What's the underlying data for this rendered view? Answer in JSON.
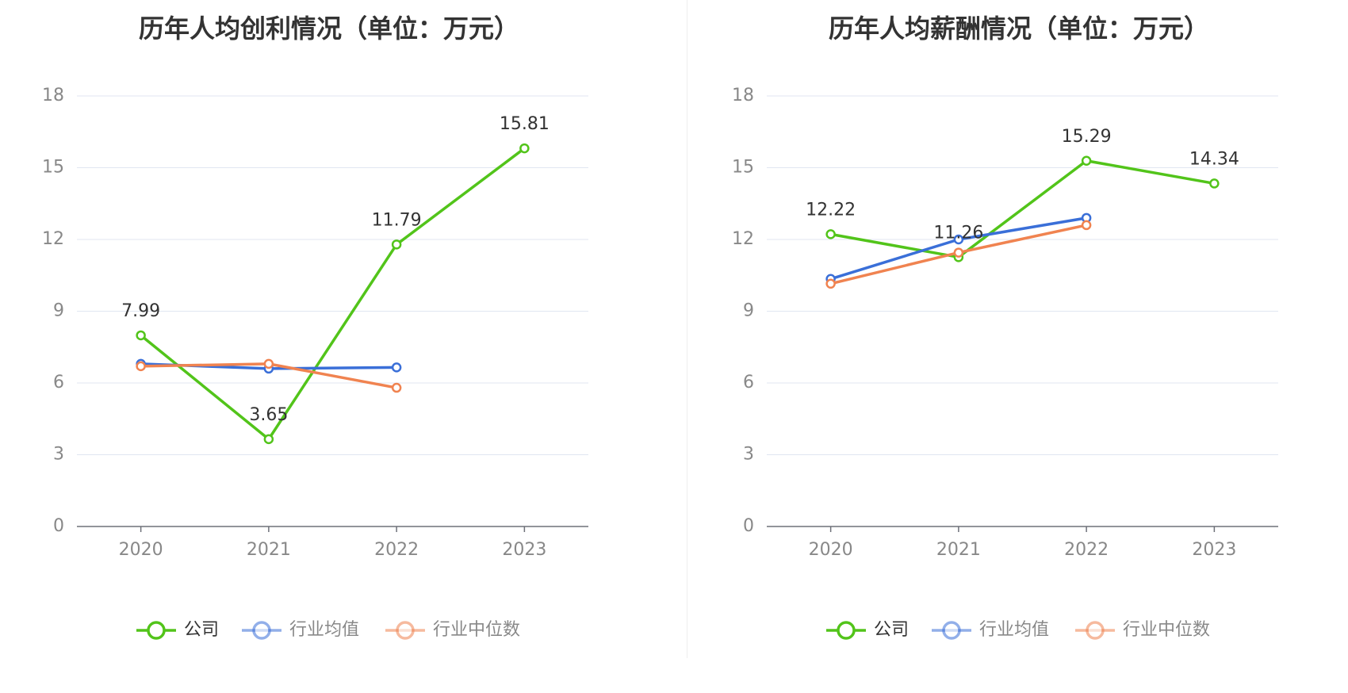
{
  "chart_data": [
    {
      "type": "line",
      "title": "历年人均创利情况（单位：万元）",
      "categories": [
        "2020",
        "2021",
        "2022",
        "2023"
      ],
      "ylim": [
        0,
        18
      ],
      "yticks": [
        0,
        3,
        6,
        9,
        12,
        15,
        18
      ],
      "grid": true,
      "legend_position": "bottom",
      "series": [
        {
          "name": "公司",
          "color": "#52c41a",
          "values": [
            7.99,
            3.65,
            11.79,
            15.81
          ],
          "labels": [
            "7.99",
            "3.65",
            "11.79",
            "15.81"
          ]
        },
        {
          "name": "行业均值",
          "color": "#3a6fd8",
          "values": [
            6.8,
            6.6,
            6.65,
            null
          ],
          "labels": []
        },
        {
          "name": "行业中位数",
          "color": "#f08350",
          "values": [
            6.7,
            6.8,
            5.8,
            null
          ],
          "labels": []
        }
      ]
    },
    {
      "type": "line",
      "title": "历年人均薪酬情况（单位：万元）",
      "categories": [
        "2020",
        "2021",
        "2022",
        "2023"
      ],
      "ylim": [
        0,
        18
      ],
      "yticks": [
        0,
        3,
        6,
        9,
        12,
        15,
        18
      ],
      "grid": true,
      "legend_position": "bottom",
      "series": [
        {
          "name": "公司",
          "color": "#52c41a",
          "values": [
            12.22,
            11.26,
            15.29,
            14.34
          ],
          "labels": [
            "12.22",
            "11.26",
            "15.29",
            "14.34"
          ]
        },
        {
          "name": "行业均值",
          "color": "#3a6fd8",
          "values": [
            10.35,
            12.0,
            12.9,
            null
          ],
          "labels": []
        },
        {
          "name": "行业中位数",
          "color": "#f08350",
          "values": [
            10.15,
            11.45,
            12.6,
            null
          ],
          "labels": []
        }
      ]
    }
  ]
}
